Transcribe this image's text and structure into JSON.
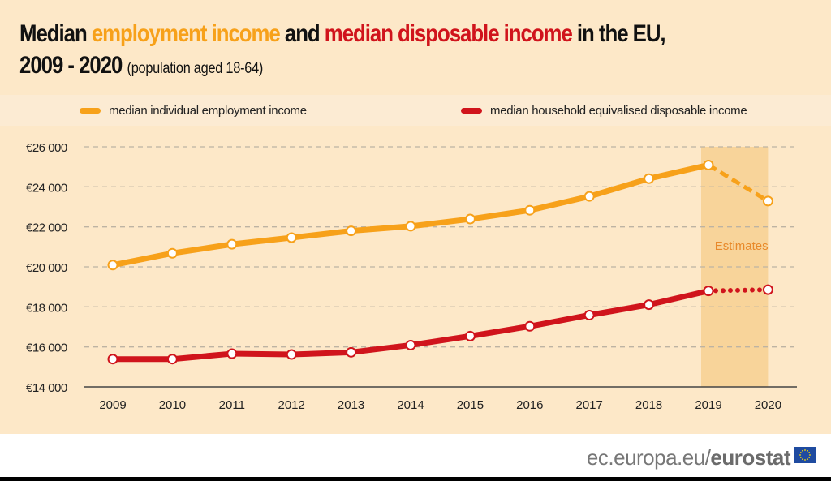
{
  "title": {
    "part1": "Median ",
    "part2": "employment income",
    "part3": " and ",
    "part4": "median disposable income",
    "part5": " in the EU,",
    "line2": "2009 - 2020",
    "subtitle": "(population aged 18-64)"
  },
  "colors": {
    "employment": "#f7a11a",
    "disposable": "#d0141c",
    "estimate_band": "#f8d49a",
    "background": "#fde8c8"
  },
  "footer": {
    "url_prefix": "ec.europa.eu/",
    "url_brand": "eurostat",
    "flag_icon": "eu-flag-icon"
  },
  "chart_data": {
    "type": "line",
    "title": "Median employment income and median disposable income in the EU, 2009 - 2020 (population aged 18-64)",
    "x": [
      "2009",
      "2010",
      "2011",
      "2012",
      "2013",
      "2014",
      "2015",
      "2016",
      "2017",
      "2018",
      "2019",
      "2020"
    ],
    "ylim": [
      14000,
      26000
    ],
    "yticks": [
      14000,
      16000,
      18000,
      20000,
      22000,
      24000,
      26000
    ],
    "ytick_labels": [
      "€14 000",
      "€16 000",
      "€18 000",
      "€20 000",
      "€22 000",
      "€24 000",
      "€26 000"
    ],
    "grid": true,
    "legend_placement": "top",
    "annotation": "Estimates",
    "estimate_range": [
      "2019",
      "2020"
    ],
    "series": [
      {
        "name": "median individual employment income",
        "color": "#f7a11a",
        "estimate_style": "dashed",
        "values": [
          20090,
          20680,
          21130,
          21460,
          21800,
          22030,
          22390,
          22830,
          23520,
          24410,
          25090,
          23290
        ]
      },
      {
        "name": "median household equivalised disposable income",
        "color": "#d0141c",
        "estimate_style": "dotted",
        "values": [
          15390,
          15390,
          15660,
          15620,
          15730,
          16090,
          16540,
          17030,
          17590,
          18110,
          18800,
          18860
        ]
      }
    ]
  }
}
